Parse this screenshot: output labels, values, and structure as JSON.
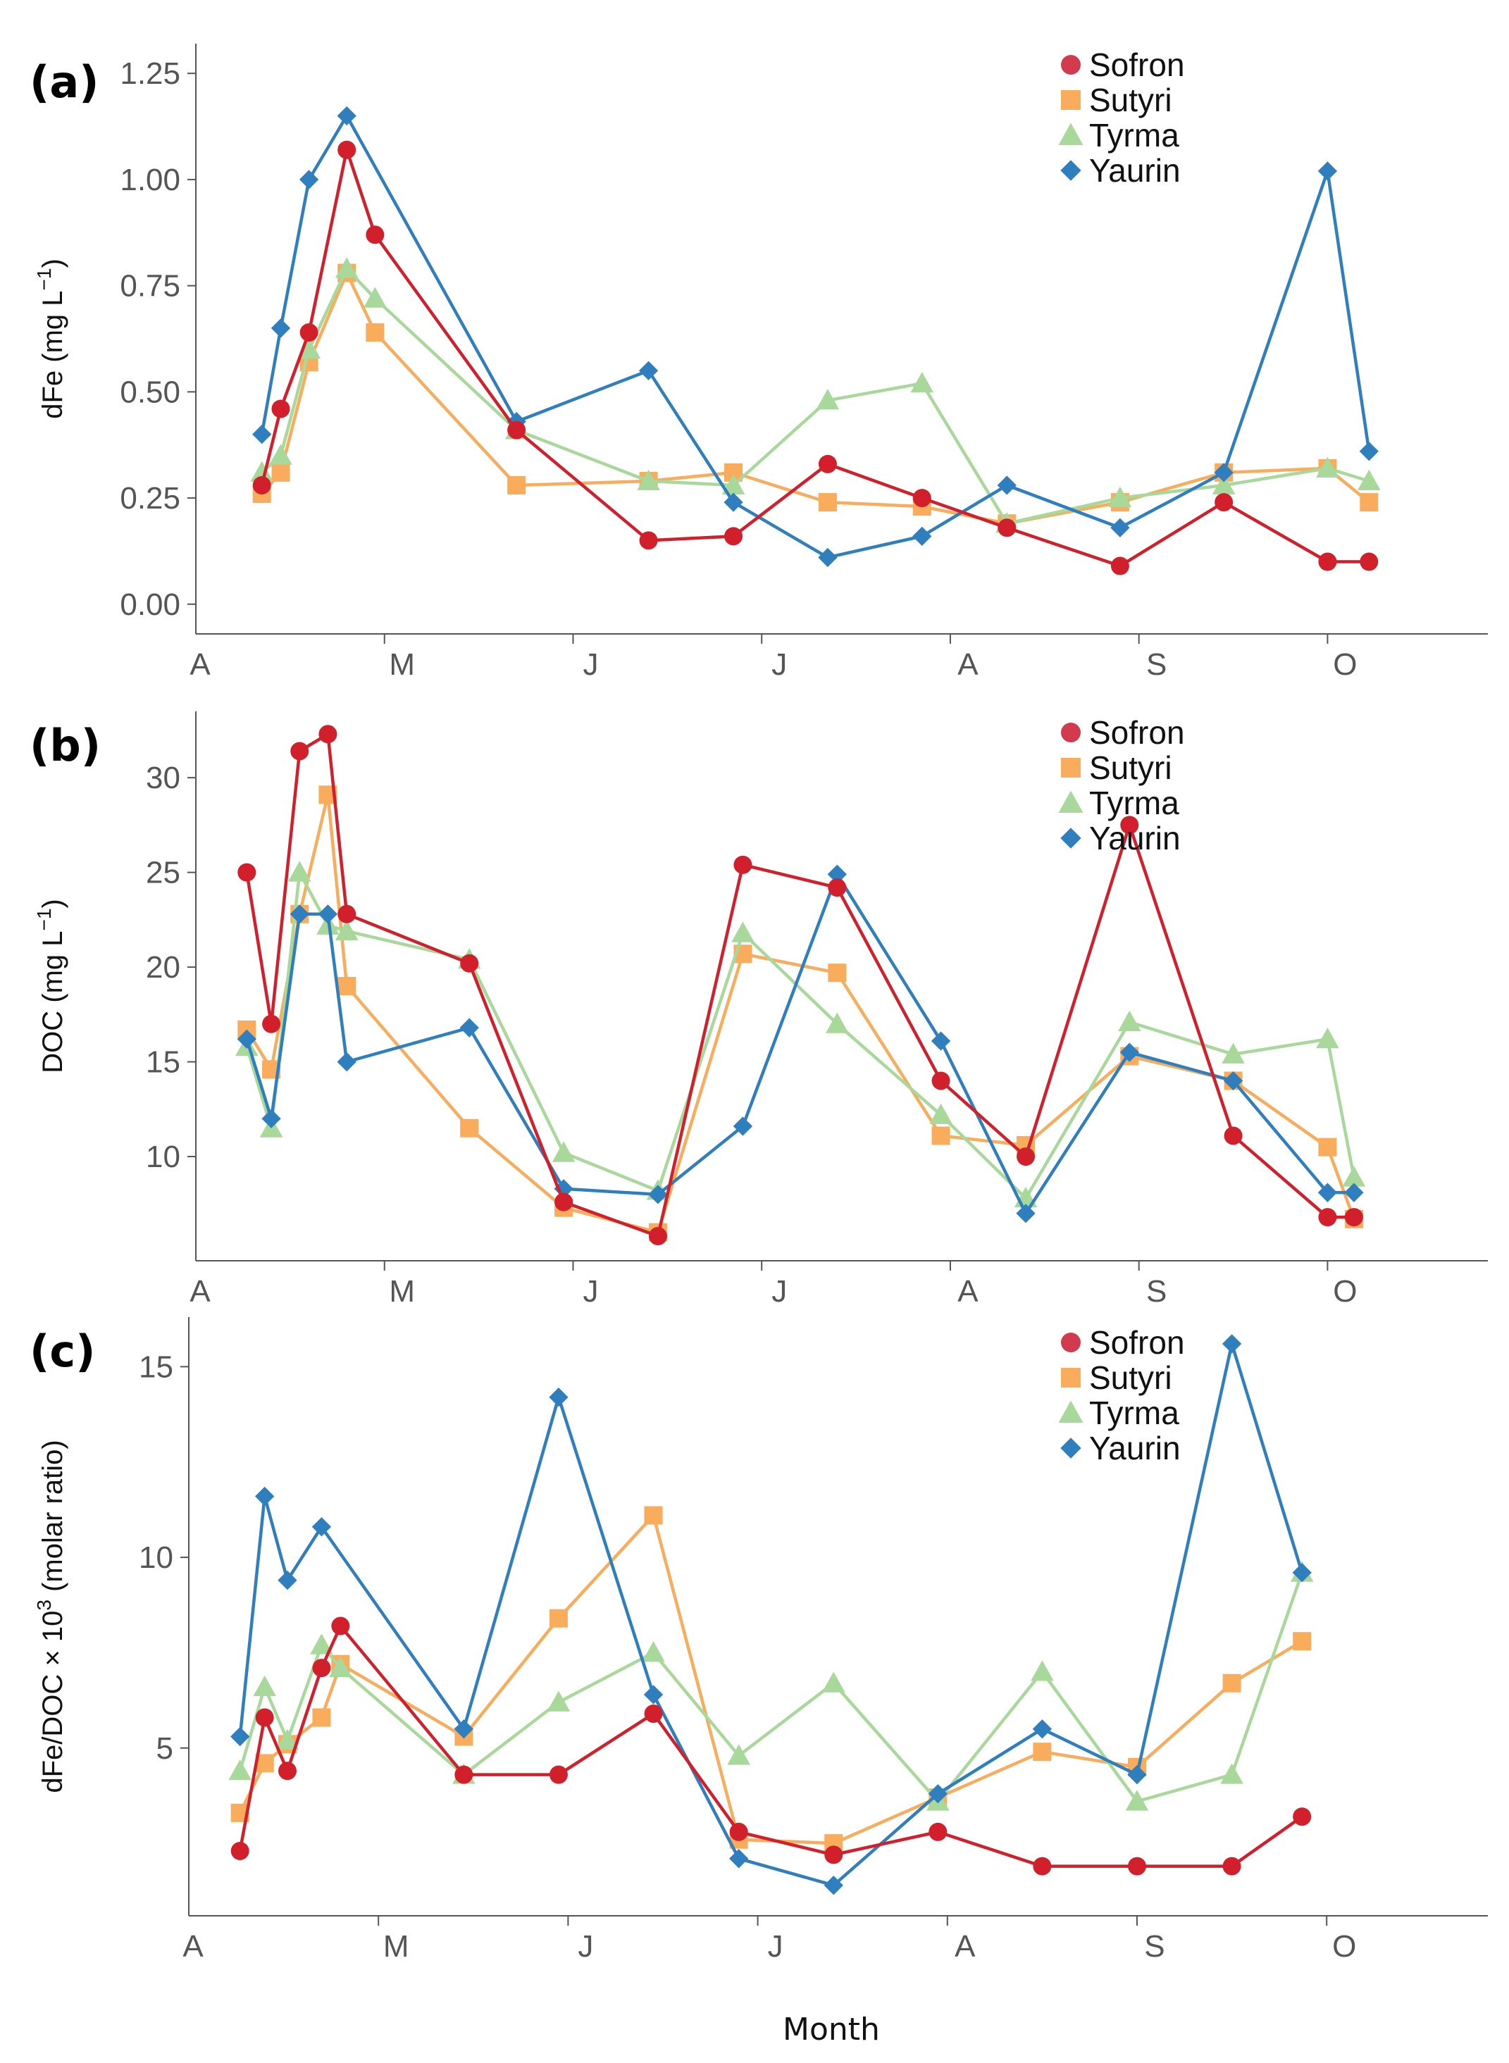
{
  "colors": {
    "Sofron": "#d1202b",
    "Sutyri": "#f8ac5c",
    "Tyrma": "#a8d89a",
    "Yaurin": "#2f7fbf",
    "Sofron_legend_marker": "#d23b4e"
  },
  "chart_data": [
    {
      "type": "line",
      "panel": "(a)",
      "ylabel_main": "dFe (mg L",
      "ylabel_sup": "−1",
      "ylabel_end": ")",
      "xlabel": "",
      "xlim": [
        0,
        6.85
      ],
      "ylim": [
        -0.07,
        1.32
      ],
      "yticks": [
        0.0,
        0.25,
        0.5,
        0.75,
        1.0,
        1.25
      ],
      "ytick_labels": [
        "0.00",
        "0.25",
        "0.50",
        "0.75",
        "1.00",
        "1.25"
      ],
      "month_ticks": [
        0,
        1,
        2,
        3,
        4,
        5,
        6
      ],
      "month_labels": [
        "A",
        "M",
        "J",
        "J",
        "A",
        "S",
        "O"
      ],
      "legend": [
        "Sofron",
        "Sutyri",
        "Tyrma",
        "Yaurin"
      ],
      "series": [
        {
          "name": "Sofron",
          "marker": "circle",
          "x": [
            0.35,
            0.45,
            0.6,
            0.8,
            0.95,
            1.7,
            2.4,
            2.85,
            3.35,
            3.85,
            4.3,
            4.9,
            5.45,
            6.0,
            6.22
          ],
          "y": [
            0.28,
            0.46,
            0.64,
            1.07,
            0.87,
            0.41,
            0.15,
            0.16,
            0.33,
            0.25,
            0.18,
            0.09,
            0.24,
            0.1,
            0.1
          ]
        },
        {
          "name": "Sutyri",
          "marker": "square",
          "x": [
            0.35,
            0.45,
            0.6,
            0.8,
            0.95,
            1.7,
            2.4,
            2.85,
            3.35,
            3.85,
            4.3,
            4.9,
            5.45,
            6.0,
            6.22
          ],
          "y": [
            0.26,
            0.31,
            0.57,
            0.78,
            0.64,
            0.28,
            0.29,
            0.31,
            0.24,
            0.23,
            0.19,
            0.24,
            0.31,
            0.32,
            0.24
          ]
        },
        {
          "name": "Tyrma",
          "marker": "triangle",
          "x": [
            0.35,
            0.45,
            0.6,
            0.8,
            0.95,
            1.7,
            2.4,
            2.85,
            3.35,
            3.85,
            4.3,
            4.9,
            5.45,
            6.0,
            6.22
          ],
          "y": [
            0.31,
            0.35,
            0.6,
            0.79,
            0.72,
            0.41,
            0.29,
            0.28,
            0.48,
            0.52,
            0.19,
            0.25,
            0.28,
            0.32,
            0.29
          ]
        },
        {
          "name": "Yaurin",
          "marker": "diamond",
          "x": [
            0.35,
            0.45,
            0.6,
            0.8,
            1.7,
            2.4,
            2.85,
            3.35,
            3.85,
            4.3,
            4.9,
            5.45,
            6.0,
            6.22
          ],
          "y": [
            0.4,
            0.65,
            1.0,
            1.15,
            0.43,
            0.55,
            0.24,
            0.11,
            0.16,
            0.28,
            0.18,
            0.31,
            1.02,
            0.36
          ]
        }
      ]
    },
    {
      "type": "line",
      "panel": "(b)",
      "ylabel_main": "DOC (mg L",
      "ylabel_sup": "−1",
      "ylabel_end": ")",
      "xlabel": "",
      "xlim": [
        0,
        6.85
      ],
      "ylim": [
        4.5,
        33.5
      ],
      "yticks": [
        10,
        15,
        20,
        25,
        30
      ],
      "ytick_labels": [
        "10",
        "15",
        "20",
        "25",
        "30"
      ],
      "month_ticks": [
        0,
        1,
        2,
        3,
        4,
        5,
        6
      ],
      "month_labels": [
        "A",
        "M",
        "J",
        "J",
        "A",
        "S",
        "O"
      ],
      "legend": [
        "Sofron",
        "Sutyri",
        "Tyrma",
        "Yaurin"
      ],
      "series": [
        {
          "name": "Sofron",
          "marker": "circle",
          "x": [
            0.27,
            0.4,
            0.55,
            0.7,
            0.8,
            1.45,
            1.95,
            2.45,
            2.9,
            3.4,
            3.95,
            4.4,
            4.95,
            5.5,
            6.0,
            6.14
          ],
          "y": [
            25.0,
            17.0,
            31.4,
            32.3,
            22.8,
            20.2,
            7.6,
            5.8,
            25.4,
            24.2,
            14.0,
            10.0,
            27.5,
            11.1,
            6.8,
            6.8
          ]
        },
        {
          "name": "Sutyri",
          "marker": "square",
          "x": [
            0.27,
            0.4,
            0.55,
            0.7,
            0.8,
            1.45,
            1.95,
            2.45,
            2.9,
            3.4,
            3.95,
            4.4,
            4.95,
            5.5,
            6.0,
            6.14
          ],
          "y": [
            16.7,
            14.6,
            22.8,
            29.1,
            19.0,
            11.5,
            7.3,
            6.0,
            20.7,
            19.7,
            11.1,
            10.6,
            15.3,
            14.0,
            10.5,
            6.7
          ]
        },
        {
          "name": "Tyrma",
          "marker": "triangle",
          "x": [
            0.27,
            0.4,
            0.55,
            0.7,
            0.8,
            1.45,
            1.95,
            2.45,
            2.9,
            3.4,
            3.95,
            4.4,
            4.95,
            5.5,
            6.0,
            6.14
          ],
          "y": [
            15.8,
            11.5,
            25.0,
            22.2,
            21.9,
            20.4,
            10.2,
            8.2,
            21.8,
            17.0,
            12.2,
            7.8,
            17.1,
            15.4,
            16.2,
            8.9
          ]
        },
        {
          "name": "Yaurin",
          "marker": "diamond",
          "x": [
            0.27,
            0.4,
            0.55,
            0.7,
            0.8,
            1.45,
            1.95,
            2.45,
            2.9,
            3.4,
            3.95,
            4.4,
            4.95,
            5.5,
            6.0,
            6.14
          ],
          "y": [
            16.2,
            12.0,
            22.8,
            22.8,
            15.0,
            16.8,
            8.3,
            8.0,
            11.6,
            24.9,
            16.1,
            7.0,
            15.5,
            14.0,
            8.1,
            8.1
          ]
        }
      ]
    },
    {
      "type": "line",
      "panel": "(c)",
      "ylabel_main": "dFe/DOC × 10",
      "ylabel_sup": "3",
      "ylabel_end": " (molar ratio)",
      "xlabel": "Month",
      "xlim": [
        0,
        6.85
      ],
      "ylim": [
        0.6,
        16.3
      ],
      "yticks": [
        5,
        10,
        15
      ],
      "ytick_labels": [
        "5",
        "10",
        "15"
      ],
      "month_ticks": [
        0,
        1,
        2,
        3,
        4,
        5,
        6
      ],
      "month_labels": [
        "A",
        "M",
        "J",
        "J",
        "A",
        "S",
        "O"
      ],
      "legend": [
        "Sofron",
        "Sutyri",
        "Tyrma",
        "Yaurin"
      ],
      "series": [
        {
          "name": "Sofron",
          "marker": "circle",
          "x": [
            0.27,
            0.4,
            0.52,
            0.7,
            0.8,
            1.45,
            1.95,
            2.45,
            2.9,
            3.4,
            3.95,
            4.5,
            5.0,
            5.5,
            5.87
          ],
          "y": [
            2.3,
            5.8,
            4.4,
            7.1,
            8.2,
            4.3,
            4.3,
            5.9,
            2.8,
            2.2,
            2.8,
            1.9,
            1.9,
            1.9,
            3.2
          ]
        },
        {
          "name": "Sutyri",
          "marker": "square",
          "x": [
            0.27,
            0.4,
            0.52,
            0.7,
            0.8,
            1.45,
            1.95,
            2.45,
            2.9,
            3.4,
            3.95,
            4.5,
            5.0,
            5.5,
            5.87
          ],
          "y": [
            3.3,
            4.6,
            5.1,
            5.8,
            7.2,
            5.3,
            8.4,
            11.1,
            2.6,
            2.5,
            3.7,
            4.9,
            4.5,
            6.7,
            7.8
          ]
        },
        {
          "name": "Tyrma",
          "marker": "triangle",
          "x": [
            0.27,
            0.4,
            0.52,
            0.7,
            0.8,
            1.45,
            1.95,
            2.45,
            2.9,
            3.4,
            3.95,
            4.5,
            5.0,
            5.5,
            5.87
          ],
          "y": [
            4.4,
            6.6,
            5.2,
            7.7,
            7.1,
            4.3,
            6.2,
            7.5,
            4.8,
            6.7,
            3.6,
            7.0,
            3.6,
            4.3,
            9.6
          ]
        },
        {
          "name": "Yaurin",
          "marker": "diamond",
          "x": [
            0.27,
            0.4,
            0.52,
            0.7,
            1.45,
            1.95,
            2.45,
            2.9,
            3.4,
            3.95,
            4.5,
            5.0,
            5.5,
            5.87
          ],
          "y": [
            5.3,
            11.6,
            9.4,
            10.8,
            5.5,
            14.2,
            6.4,
            2.1,
            1.4,
            3.8,
            5.5,
            4.3,
            15.6,
            9.6
          ]
        }
      ]
    }
  ]
}
